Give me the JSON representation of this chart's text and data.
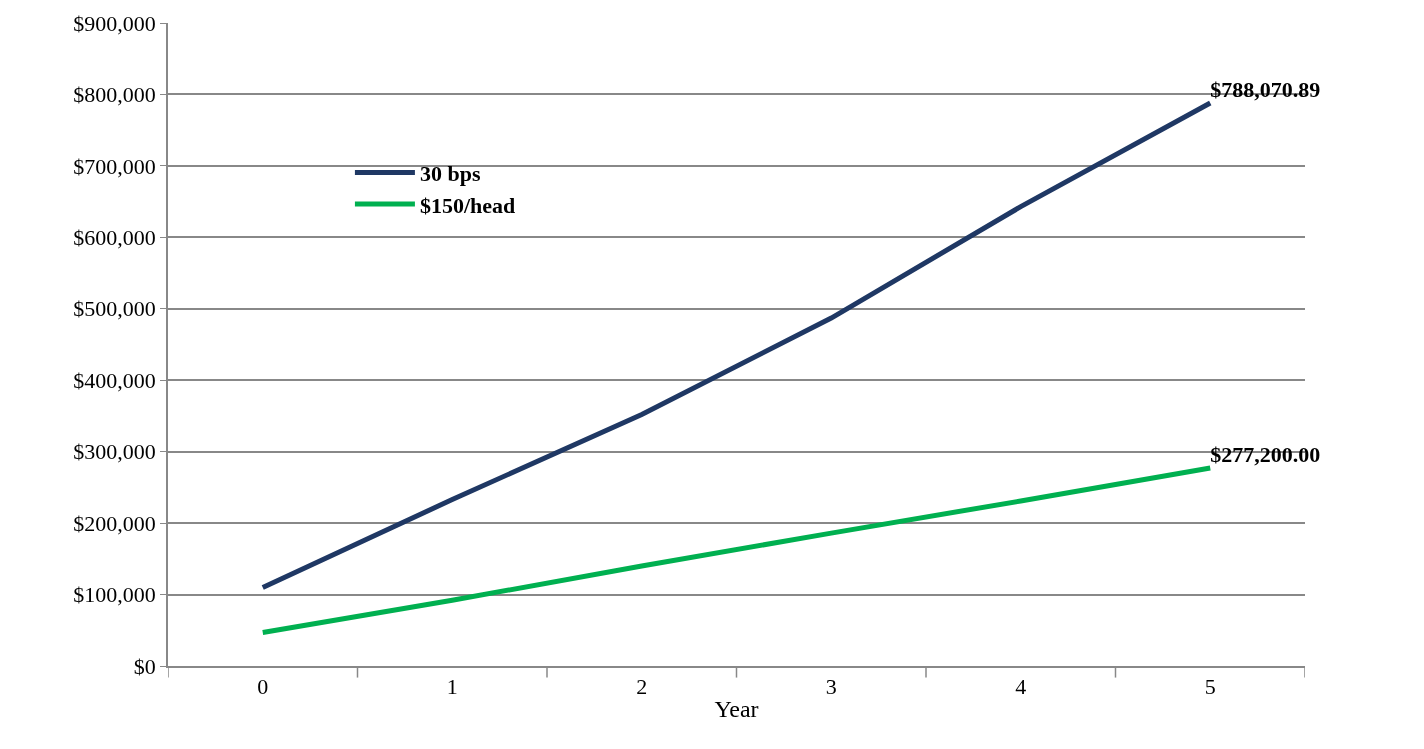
{
  "chart_data": {
    "type": "line",
    "xlabel": "Year",
    "categories": [
      "0",
      "1",
      "2",
      "3",
      "4",
      "5"
    ],
    "series": [
      {
        "name": "30 bps",
        "color": "#1f3864",
        "values": [
          110000,
          233000,
          352000,
          487000,
          643000,
          788070.89
        ],
        "value_labels": [
          null,
          null,
          null,
          null,
          null,
          "$788,070.89"
        ]
      },
      {
        "name": "$150/head",
        "color": "#00b050",
        "values": [
          47000,
          92000,
          140000,
          186000,
          231000,
          277200
        ],
        "value_labels": [
          null,
          null,
          null,
          null,
          null,
          "$277,200.00"
        ]
      }
    ],
    "ylim": [
      0,
      900000
    ],
    "yticks": [
      {
        "value": 0,
        "label": "$0"
      },
      {
        "value": 100000,
        "label": "$100,000"
      },
      {
        "value": 200000,
        "label": "$200,000"
      },
      {
        "value": 300000,
        "label": "$300,000"
      },
      {
        "value": 400000,
        "label": "$400,000"
      },
      {
        "value": 500000,
        "label": "$500,000"
      },
      {
        "value": 600000,
        "label": "$600,000"
      },
      {
        "value": 700000,
        "label": "$700,000"
      },
      {
        "value": 800000,
        "label": "$800,000"
      },
      {
        "value": 900000,
        "label": "$900,000"
      }
    ],
    "grid": "y",
    "legend": "top left",
    "line_style": "solid"
  }
}
